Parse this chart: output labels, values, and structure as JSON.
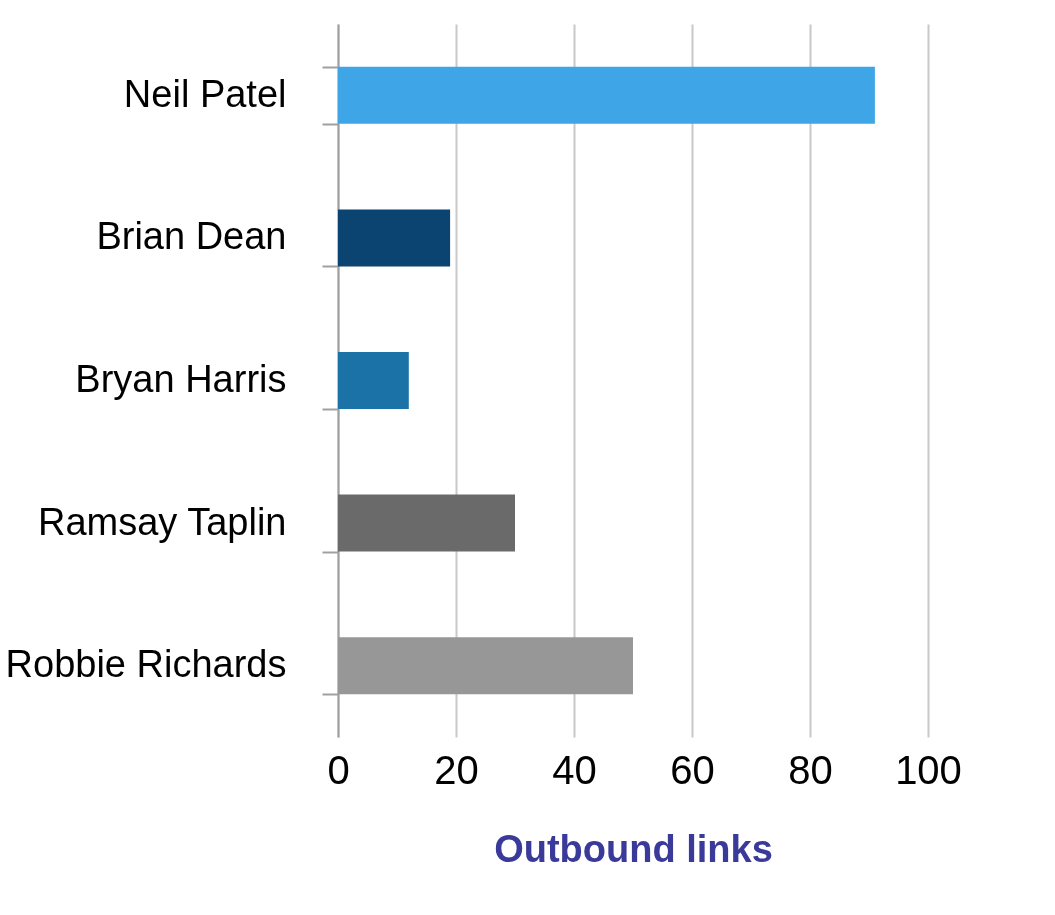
{
  "chart_data": {
    "type": "bar",
    "orientation": "horizontal",
    "xlabel": "Outbound links",
    "categories": [
      "Neil Patel",
      "Brian Dean",
      "Bryan Harris",
      "Ramsay Taplin",
      "Robbie Richards"
    ],
    "values": [
      91,
      19,
      12,
      30,
      50
    ],
    "colors": [
      "#3ea6e6",
      "#0b4470",
      "#1b72a6",
      "#6a6a6a",
      "#979797"
    ],
    "xlim": [
      0,
      100
    ],
    "xticks": [
      0,
      20,
      40,
      60,
      80,
      100
    ],
    "grid": "x"
  }
}
